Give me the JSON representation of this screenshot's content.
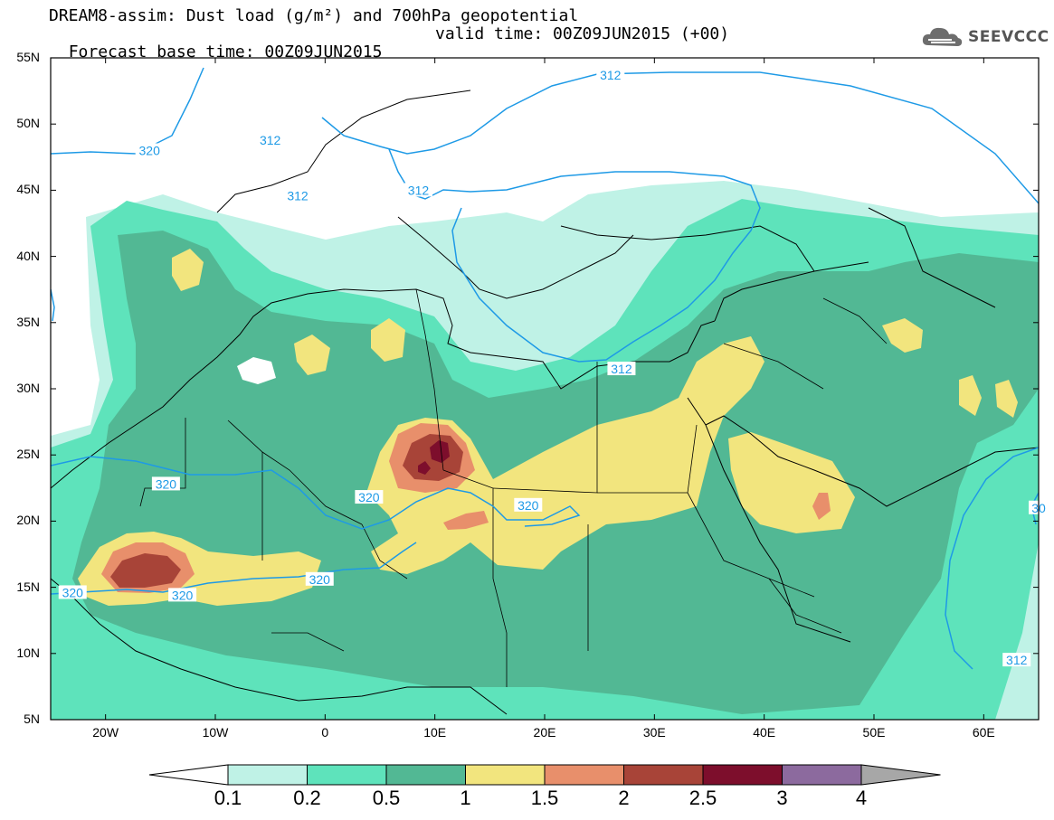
{
  "title_line1": "DREAM8-assim: Dust load (g/m²) and 700hPa geopotential",
  "title_line2_left": "Forecast base time: 00Z09JUN2015",
  "title_line2_right": "valid time: 00Z09JUN2015 (+00)",
  "logo_text": "SEEVCCC",
  "lat_labels": [
    "55N",
    "50N",
    "45N",
    "40N",
    "35N",
    "30N",
    "25N",
    "20N",
    "15N",
    "10N",
    "5N"
  ],
  "lon_labels": [
    "20W",
    "10W",
    "0",
    "10E",
    "20E",
    "30E",
    "40E",
    "50E",
    "60E"
  ],
  "contour_labels": [
    {
      "text": "320",
      "lon": -16,
      "lat": 48
    },
    {
      "text": "312",
      "lon": -5,
      "lat": 48.8
    },
    {
      "text": "312",
      "lon": -2.5,
      "lat": 44.6
    },
    {
      "text": "312",
      "lon": 8.5,
      "lat": 45
    },
    {
      "text": "312",
      "lon": 26,
      "lat": 53.7
    },
    {
      "text": "312",
      "lon": 27,
      "lat": 31.5
    },
    {
      "text": "320",
      "lon": -14.5,
      "lat": 22.8
    },
    {
      "text": "320",
      "lon": 4,
      "lat": 21.8
    },
    {
      "text": "320",
      "lon": 18.5,
      "lat": 21.2
    },
    {
      "text": "320",
      "lon": -23,
      "lat": 14.6
    },
    {
      "text": "320",
      "lon": -13,
      "lat": 14.4
    },
    {
      "text": "320",
      "lon": -0.5,
      "lat": 15.6
    },
    {
      "text": "312",
      "lon": 63,
      "lat": 9.5
    },
    {
      "text": "30",
      "lon": 65,
      "lat": 21
    }
  ],
  "colorbar": {
    "labels": [
      "0.1",
      "0.2",
      "0.5",
      "1",
      "1.5",
      "2",
      "2.5",
      "3",
      "4"
    ],
    "colors": [
      "#bff2e6",
      "#5ee3bb",
      "#52b894",
      "#f2e57e",
      "#e88f6b",
      "#a84438",
      "#7d0e2c",
      "#8c6a9e",
      "#a7a7a7"
    ]
  },
  "colors": {
    "contour": "#1e9ae6",
    "coast": "#000000"
  }
}
